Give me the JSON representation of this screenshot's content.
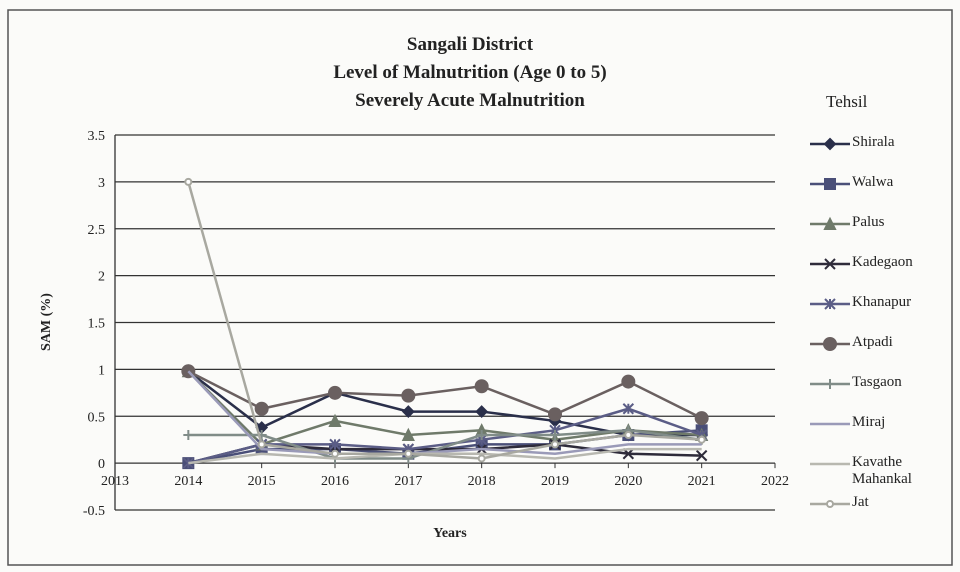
{
  "chart_data": {
    "type": "line",
    "title": [
      "Sangali District",
      "Level of Malnutrition (Age 0 to 5)",
      "Severely Acute Malnutrition"
    ],
    "x_label": "Years",
    "y_label": "SAM (%)",
    "legend_title": "Tehsil",
    "x": [
      2014,
      2015,
      2016,
      2017,
      2018,
      2019,
      2020,
      2021
    ],
    "xlim": [
      2013,
      2022
    ],
    "xticks": [
      2013,
      2014,
      2015,
      2016,
      2017,
      2018,
      2019,
      2020,
      2021,
      2022
    ],
    "ylim": [
      -0.5,
      3.5
    ],
    "yticks": [
      -0.5,
      0,
      0.5,
      1,
      1.5,
      2,
      2.5,
      3,
      3.5
    ],
    "grid": true,
    "legend": "right",
    "series": [
      {
        "name": "Shirala",
        "color": "#2a2f4a",
        "marker": "diamond",
        "values": [
          0.98,
          0.38,
          0.75,
          0.55,
          0.55,
          0.45,
          0.3,
          0.3
        ]
      },
      {
        "name": "Walwa",
        "color": "#4a4f78",
        "marker": "square",
        "values": [
          0,
          0.15,
          0.15,
          0.1,
          0.2,
          0.2,
          0.3,
          0.35
        ]
      },
      {
        "name": "Palus",
        "color": "#6f7a6a",
        "marker": "triangle",
        "values": [
          0.98,
          0.2,
          0.45,
          0.3,
          0.35,
          0.25,
          0.35,
          0.3
        ]
      },
      {
        "name": "Kadegaon",
        "color": "#2e2b3a",
        "marker": "x",
        "values": [
          0,
          0.2,
          0.15,
          0.15,
          0.15,
          0.2,
          0.1,
          0.08
        ]
      },
      {
        "name": "Khanapur",
        "color": "#5b5d86",
        "marker": "asterisk",
        "values": [
          0,
          0.2,
          0.2,
          0.15,
          0.25,
          0.35,
          0.58,
          0.3
        ]
      },
      {
        "name": "Atpadi",
        "color": "#6a6060",
        "marker": "circle",
        "values": [
          0.98,
          0.58,
          0.75,
          0.72,
          0.82,
          0.52,
          0.87,
          0.48
        ]
      },
      {
        "name": "Tasgaon",
        "color": "#808c88",
        "marker": "plus",
        "values": [
          0.3,
          0.3,
          0.05,
          0.05,
          0.3,
          0.3,
          0.35,
          0.25
        ]
      },
      {
        "name": "Miraj",
        "color": "#9a9ab8",
        "marker": "none",
        "values": [
          0.98,
          0.15,
          0.1,
          0.1,
          0.15,
          0.1,
          0.2,
          0.2
        ]
      },
      {
        "name": "Kavathe Mahankal",
        "color": "#b8b8b0",
        "marker": "none",
        "values": [
          0,
          0.1,
          0.05,
          0.1,
          0.1,
          0.05,
          0.15,
          0.15
        ]
      },
      {
        "name": "Jat",
        "color": "#a8a8a0",
        "marker": "smallcircle",
        "values": [
          3.0,
          0.2,
          0.1,
          0.1,
          0.05,
          0.2,
          0.3,
          0.25
        ]
      }
    ]
  }
}
